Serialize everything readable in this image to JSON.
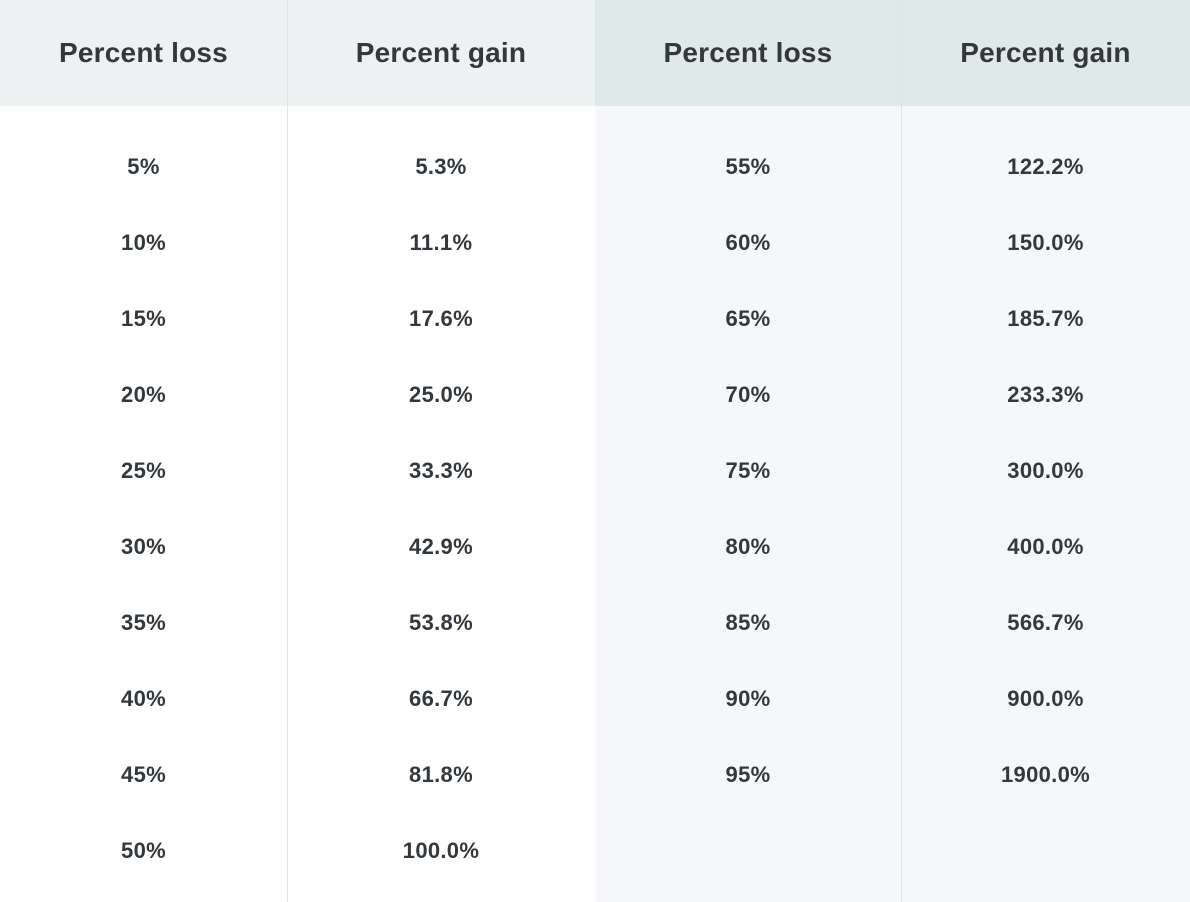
{
  "chart_data": {
    "type": "table",
    "title": "",
    "columns": [
      "Percent loss",
      "Percent gain",
      "Percent loss",
      "Percent gain"
    ],
    "rows": [
      [
        "5%",
        "5.3%",
        "55%",
        "122.2%"
      ],
      [
        "10%",
        "11.1%",
        "60%",
        "150.0%"
      ],
      [
        "15%",
        "17.6%",
        "65%",
        "185.7%"
      ],
      [
        "20%",
        "25.0%",
        "70%",
        "233.3%"
      ],
      [
        "25%",
        "33.3%",
        "75%",
        "300.0%"
      ],
      [
        "30%",
        "42.9%",
        "80%",
        "400.0%"
      ],
      [
        "35%",
        "53.8%",
        "85%",
        "566.7%"
      ],
      [
        "40%",
        "66.7%",
        "90%",
        "900.0%"
      ],
      [
        "45%",
        "81.8%",
        "95%",
        "1900.0%"
      ],
      [
        "50%",
        "100.0%",
        "",
        ""
      ]
    ]
  },
  "colors": {
    "header_bg_left": "#edf1f1",
    "header_bg_right": "#e0e9e9",
    "body_bg_left": "#ffffff",
    "body_bg_right": "#f5f7f9",
    "divider": "#dfe3e3",
    "text": "#33383c"
  }
}
